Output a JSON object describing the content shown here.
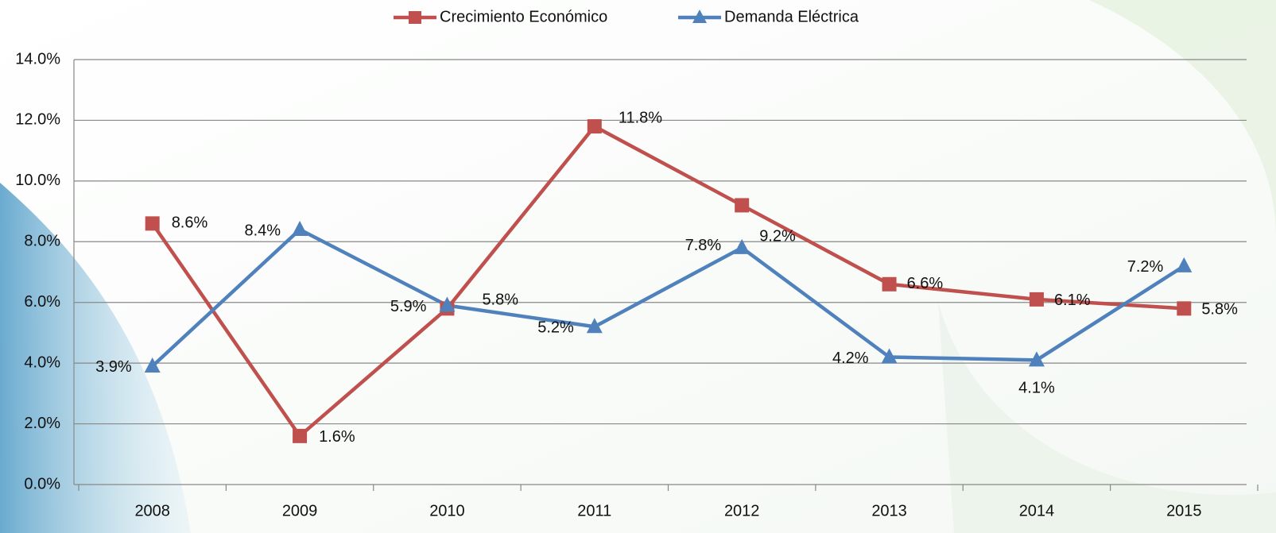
{
  "chart_data": {
    "type": "line",
    "categories": [
      "2008",
      "2009",
      "2010",
      "2011",
      "2012",
      "2013",
      "2014",
      "2015"
    ],
    "series": [
      {
        "name": "Crecimiento Económico",
        "color": "#c0504d",
        "marker": "square",
        "values": [
          8.6,
          1.6,
          5.8,
          11.8,
          9.2,
          6.6,
          6.1,
          5.8
        ],
        "value_labels": [
          "8.6%",
          "1.6%",
          "5.8%",
          "11.8%",
          "9.2%",
          "6.6%",
          "6.1%",
          "5.8%"
        ]
      },
      {
        "name": "Demanda Eléctrica",
        "color": "#4f81bd",
        "marker": "triangle",
        "values": [
          3.9,
          8.4,
          5.9,
          5.2,
          7.8,
          4.2,
          4.1,
          7.2
        ],
        "value_labels": [
          "3.9%",
          "8.4%",
          "5.9%",
          "5.2%",
          "7.8%",
          "4.2%",
          "4.1%",
          "7.2%"
        ]
      }
    ],
    "ylim": [
      0,
      14
    ],
    "yticks": [
      {
        "value": 0,
        "label": "0.0%"
      },
      {
        "value": 2,
        "label": "2.0%"
      },
      {
        "value": 4,
        "label": "4.0%"
      },
      {
        "value": 6,
        "label": "6.0%"
      },
      {
        "value": 8,
        "label": "8.0%"
      },
      {
        "value": 10,
        "label": "10.0%"
      },
      {
        "value": 12,
        "label": "12.0%"
      },
      {
        "value": 14,
        "label": "14.0%"
      }
    ],
    "grid": true,
    "legend": "top"
  }
}
